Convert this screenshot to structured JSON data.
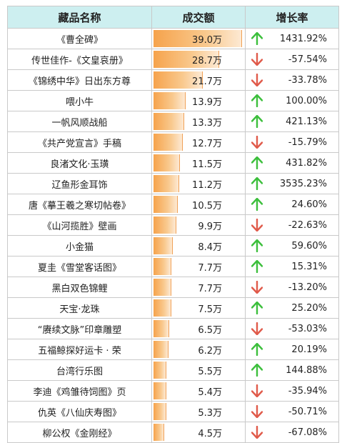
{
  "headers": {
    "name": "藏品名称",
    "amount": "成交额",
    "growth": "增长率"
  },
  "colors": {
    "header_bg": "#cdeff0",
    "up": "#3cbf3c",
    "down": "#e05a4a",
    "bar": "#f6a34c"
  },
  "max_amount": 39.0,
  "rows": [
    {
      "name": "《曹全碑》",
      "amount_value": 39.0,
      "amount": "39.0万",
      "dir": "up",
      "growth": "1431.92%"
    },
    {
      "name": "传世佳作-《文皇哀册》",
      "amount_value": 28.7,
      "amount": "28.7万",
      "dir": "down",
      "growth": "-57.54%"
    },
    {
      "name": "《锦绣中华》日出东方尊",
      "amount_value": 21.7,
      "amount": "21.7万",
      "dir": "down",
      "growth": "-33.78%"
    },
    {
      "name": "喂小牛",
      "amount_value": 13.9,
      "amount": "13.9万",
      "dir": "up",
      "growth": "100.00%"
    },
    {
      "name": "一帆风顺战船",
      "amount_value": 13.3,
      "amount": "13.3万",
      "dir": "up",
      "growth": "421.13%"
    },
    {
      "name": "《共产党宣言》手稿",
      "amount_value": 12.7,
      "amount": "12.7万",
      "dir": "down",
      "growth": "-15.79%"
    },
    {
      "name": "良渚文化·玉璜",
      "amount_value": 11.5,
      "amount": "11.5万",
      "dir": "up",
      "growth": "431.82%"
    },
    {
      "name": "辽鱼形金耳饰",
      "amount_value": 11.2,
      "amount": "11.2万",
      "dir": "up",
      "growth": "3535.23%"
    },
    {
      "name": "唐《摹王羲之寒切帖卷》",
      "amount_value": 10.5,
      "amount": "10.5万",
      "dir": "up",
      "growth": "24.60%"
    },
    {
      "name": "《山河揽胜》壁画",
      "amount_value": 9.9,
      "amount": "9.9万",
      "dir": "down",
      "growth": "-22.63%"
    },
    {
      "name": "小金猫",
      "amount_value": 8.4,
      "amount": "8.4万",
      "dir": "up",
      "growth": "59.60%"
    },
    {
      "name": "夏圭《雪堂客话图》",
      "amount_value": 7.7,
      "amount": "7.7万",
      "dir": "up",
      "growth": "15.31%"
    },
    {
      "name": "黑白双色锦鲤",
      "amount_value": 7.7,
      "amount": "7.7万",
      "dir": "down",
      "growth": "-13.20%"
    },
    {
      "name": "天宝·龙珠",
      "amount_value": 7.5,
      "amount": "7.5万",
      "dir": "up",
      "growth": "25.20%"
    },
    {
      "name": "“赓续文脉”印章雕塑",
      "amount_value": 6.5,
      "amount": "6.5万",
      "dir": "down",
      "growth": "-53.03%"
    },
    {
      "name": "五福鲸探好运卡 · 荣",
      "amount_value": 6.2,
      "amount": "6.2万",
      "dir": "up",
      "growth": "20.19%"
    },
    {
      "name": "台湾行乐图",
      "amount_value": 5.5,
      "amount": "5.5万",
      "dir": "up",
      "growth": "144.88%"
    },
    {
      "name": "李迪《鸡雏待饲图》页",
      "amount_value": 5.4,
      "amount": "5.4万",
      "dir": "down",
      "growth": "-35.94%"
    },
    {
      "name": "仇英《八仙庆寿图》",
      "amount_value": 5.3,
      "amount": "5.3万",
      "dir": "down",
      "growth": "-50.71%"
    },
    {
      "name": "柳公权《金刚经》",
      "amount_value": 4.5,
      "amount": "4.5万",
      "dir": "down",
      "growth": "-67.08%"
    }
  ]
}
